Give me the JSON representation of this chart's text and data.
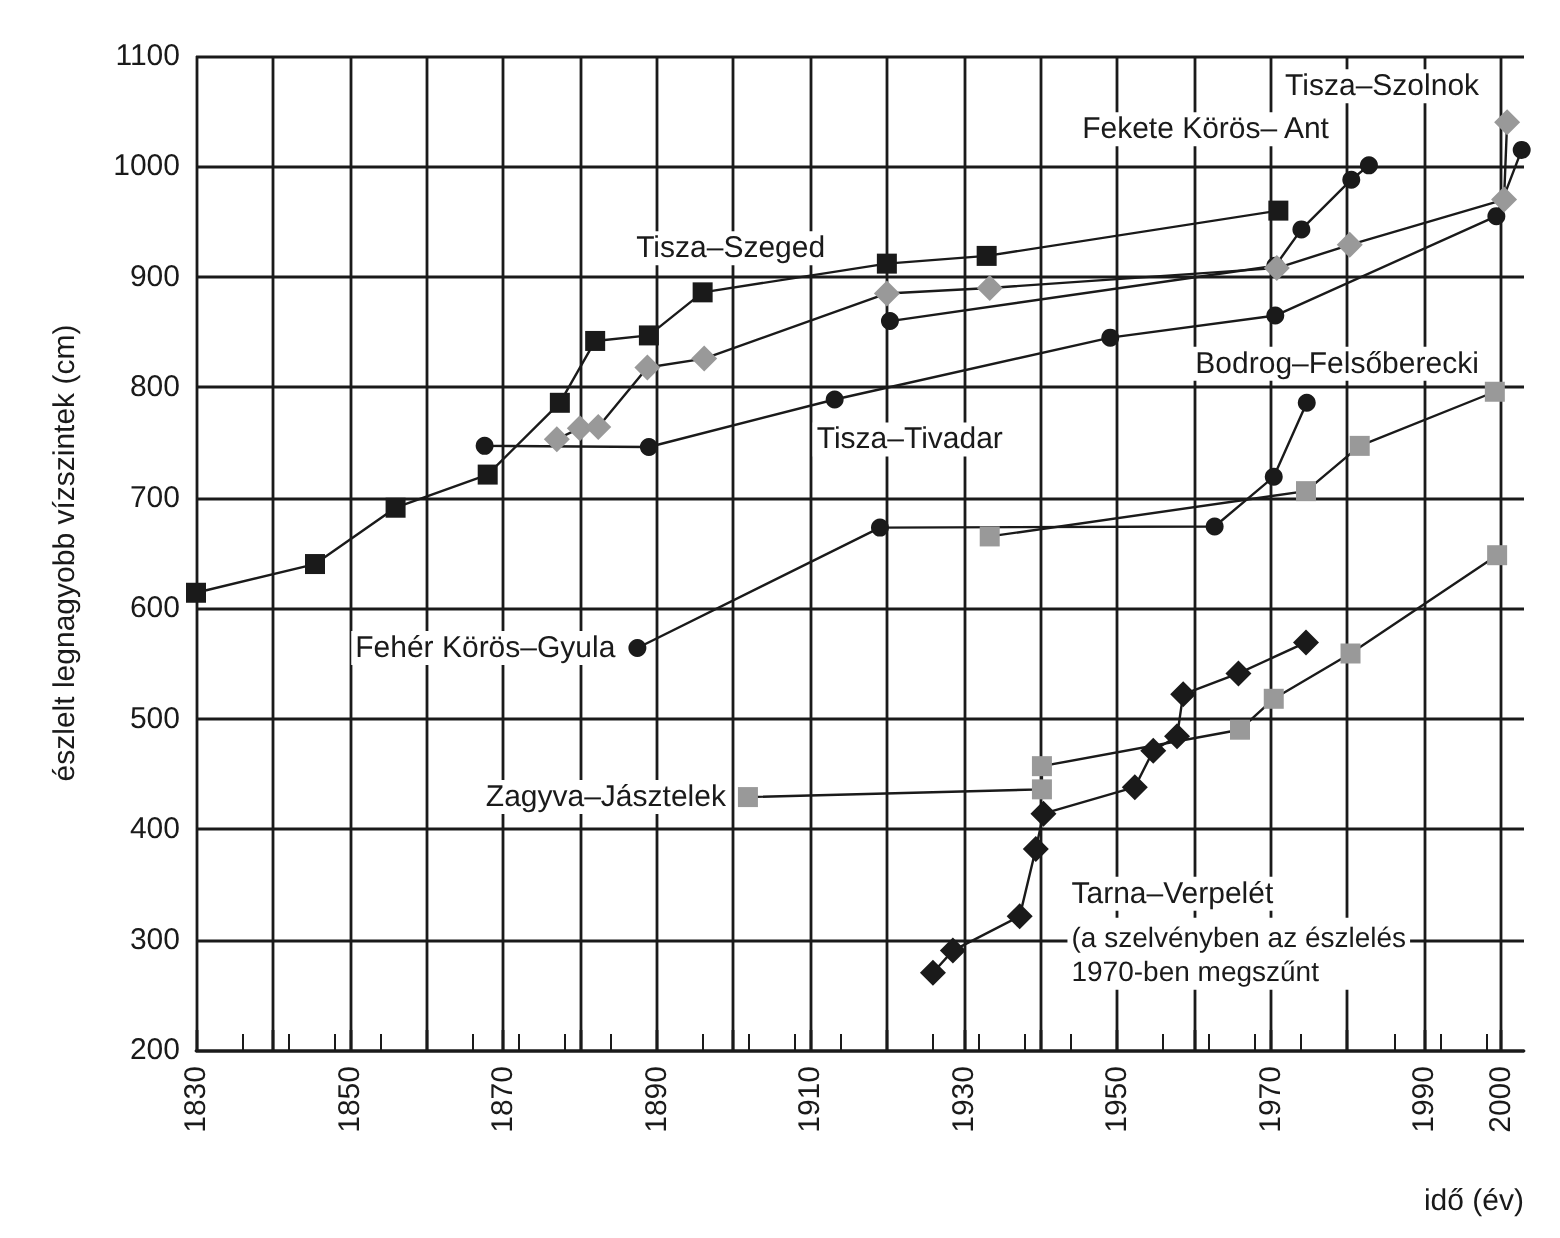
{
  "chart_data": {
    "type": "line",
    "xlabel": "idő (év)",
    "ylabel": "észlelt legnagyobb vízszintek (cm)",
    "xlim": [
      1830,
      2003
    ],
    "xticks": [
      1830,
      {
        "value": 1840,
        "label": null
      },
      1850,
      {
        "value": 1860,
        "label": null
      },
      1870,
      {
        "value": 1880,
        "label": null
      },
      1890,
      {
        "value": 1900,
        "label": null
      },
      1910,
      {
        "value": 1920,
        "label": null
      },
      1930,
      {
        "value": 1940,
        "label": null
      },
      1950,
      {
        "value": 1960,
        "label": null
      },
      1970,
      {
        "value": 1980,
        "label": null
      },
      1990,
      2000
    ],
    "ylim": [
      200,
      1100
    ],
    "yticks": [
      200,
      300,
      400,
      500,
      600,
      700,
      800,
      900,
      1000,
      1100
    ],
    "grid": true,
    "legend": false,
    "line_style": "solid",
    "annotations": [
      "(a szelvényben az észlelés\n1970-ben megszűnt"
    ],
    "series": [
      {
        "name": "Tisza–Szeged",
        "color": "#1a1a1a",
        "marker": "square",
        "x": [
          1830,
          1845.5,
          1856,
          1868,
          1877.4,
          1882,
          1889,
          1896,
          1920,
          1933,
          1971
        ],
        "values": [
          614,
          640,
          691,
          721,
          786,
          842,
          847,
          886,
          912,
          919,
          960
        ]
      },
      {
        "name": "Tisza–Szolnok",
        "color": "#999999",
        "marker": "diamond",
        "x": [
          1877,
          1880,
          1882.4,
          1888.8,
          1896.2,
          1920,
          1933.4,
          1970.8,
          1980.3,
          2000.4,
          2000.8
        ],
        "values": [
          753,
          763,
          764,
          818,
          826,
          885,
          890,
          908,
          929,
          970,
          1040
        ]
      },
      {
        "name": "Fekete Körös– Ant",
        "color": "#1a1a1a",
        "marker": "circle",
        "x": [
          1920.4,
          1970.6,
          1974,
          1980.5,
          1982.8
        ],
        "values": [
          860,
          910,
          943,
          988,
          1001
        ]
      },
      {
        "name": "Tisza–Tivadar",
        "color": "#1a1a1a",
        "marker": "circle",
        "x": [
          1867.6,
          1889,
          1913.2,
          1949.1,
          1970.6,
          1999.4,
          2002.7
        ],
        "values": [
          747,
          746,
          789,
          845,
          865,
          955,
          1015
        ]
      },
      {
        "name": "Fehér Körös–Gyula",
        "color": "#1a1a1a",
        "marker": "circle",
        "x": [
          1887.5,
          1919.1,
          1962.7,
          1970.4,
          1974.7
        ],
        "values": [
          564,
          673,
          674,
          719,
          786
        ]
      },
      {
        "name": "Bodrog–Felsőberecki",
        "color": "#999999",
        "marker": "square",
        "x": [
          1933.4,
          1974.6,
          1981.6,
          1999.2
        ],
        "values": [
          665,
          706,
          747,
          796
        ]
      },
      {
        "name": "Zagyva–Jásztelek",
        "color": "#999999",
        "marker": "square",
        "x": [
          1901.9,
          1940.2,
          1940.2,
          1966,
          1970.4,
          1980.4,
          1999.5
        ],
        "values": [
          429,
          436,
          457,
          490,
          518,
          559,
          648
        ]
      },
      {
        "name": "Tarna–Verpelét",
        "color": "#1a1a1a",
        "marker": "diamond",
        "x": [
          1926,
          1928.6,
          1937.3,
          1939.4,
          1940.4,
          1952.3,
          1954.7,
          1957.8,
          1958.6,
          1965.8,
          1974.6
        ],
        "values": [
          270,
          290,
          321,
          382,
          414,
          438,
          471,
          484,
          522,
          541,
          569
        ]
      }
    ]
  }
}
